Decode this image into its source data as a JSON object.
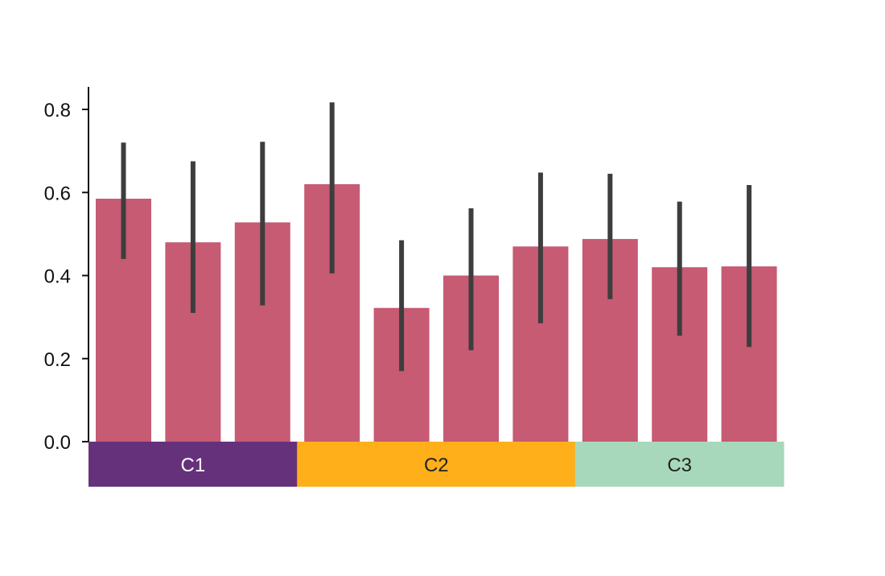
{
  "chart_data": {
    "type": "bar",
    "title": "",
    "xlabel": "",
    "ylabel": "",
    "ylim": [
      0,
      0.85
    ],
    "yticks": [
      "0.0",
      "0.2",
      "0.4",
      "0.6",
      "0.8"
    ],
    "grid": false,
    "legend": "none",
    "bar_color": "#C65B73",
    "errorbar_color": "#3d3d3d",
    "groups": [
      {
        "label": "C1",
        "color": "#66317B",
        "text_color": "#ffffff",
        "bars": [
          {
            "value": 0.585,
            "err_low": 0.44,
            "err_high": 0.72
          },
          {
            "value": 0.48,
            "err_low": 0.31,
            "err_high": 0.675
          },
          {
            "value": 0.528,
            "err_low": 0.328,
            "err_high": 0.722
          }
        ]
      },
      {
        "label": "C2",
        "color": "#FEAF1A",
        "text_color": "#222222",
        "bars": [
          {
            "value": 0.62,
            "err_low": 0.405,
            "err_high": 0.817
          },
          {
            "value": 0.322,
            "err_low": 0.17,
            "err_high": 0.485
          },
          {
            "value": 0.4,
            "err_low": 0.22,
            "err_high": 0.562
          },
          {
            "value": 0.47,
            "err_low": 0.285,
            "err_high": 0.648
          }
        ]
      },
      {
        "label": "C3",
        "color": "#A8D8BB",
        "text_color": "#222222",
        "bars": [
          {
            "value": 0.488,
            "err_low": 0.343,
            "err_high": 0.645
          },
          {
            "value": 0.42,
            "err_low": 0.255,
            "err_high": 0.578
          },
          {
            "value": 0.422,
            "err_low": 0.228,
            "err_high": 0.618
          }
        ]
      }
    ]
  }
}
